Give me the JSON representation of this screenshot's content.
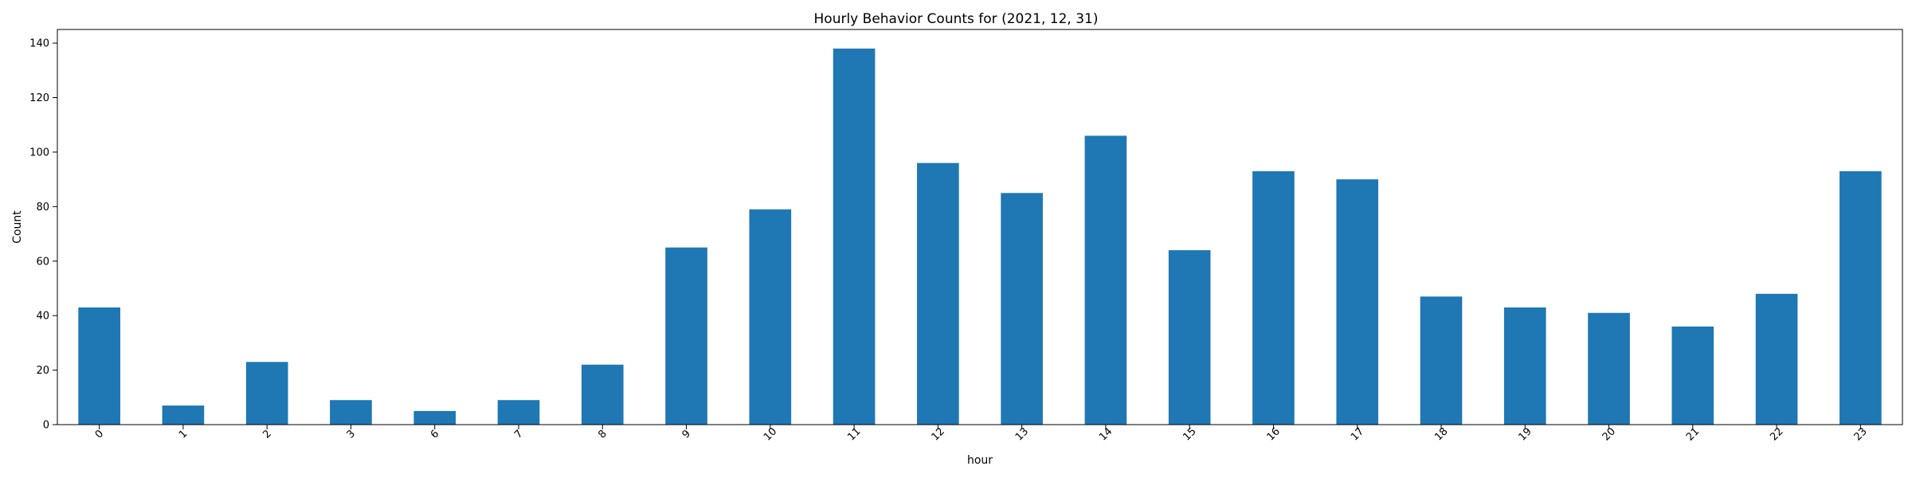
{
  "chart_data": {
    "type": "bar",
    "title": "Hourly Behavior Counts for (2021, 12, 31)",
    "xlabel": "hour",
    "ylabel": "Count",
    "categories": [
      "0",
      "1",
      "2",
      "3",
      "6",
      "7",
      "8",
      "9",
      "10",
      "11",
      "12",
      "13",
      "14",
      "15",
      "16",
      "17",
      "18",
      "19",
      "20",
      "21",
      "22",
      "23"
    ],
    "values": [
      43,
      7,
      23,
      9,
      5,
      9,
      22,
      65,
      79,
      138,
      96,
      85,
      106,
      64,
      93,
      90,
      47,
      43,
      41,
      36,
      48,
      93
    ],
    "ylim": [
      0,
      145
    ],
    "yticks": [
      0,
      20,
      40,
      60,
      80,
      100,
      120,
      140
    ],
    "grid": false,
    "legend": "none",
    "bar_color": "#1f77b4",
    "xtick_rotation": -45
  }
}
